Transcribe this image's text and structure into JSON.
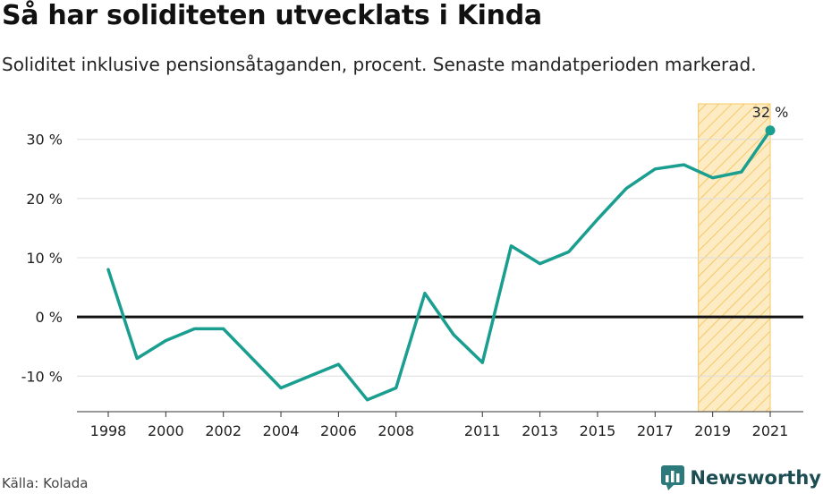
{
  "header": {
    "title": "Så har soliditeten utvecklats i Kinda",
    "subtitle": "Soliditet inklusive pensionsåtaganden, procent. Senaste mandatperioden markerad."
  },
  "footer": {
    "source": "Källa: Kolada",
    "brand": "Newsworthy",
    "brand_icon": "bar-chart-speech-icon"
  },
  "colors": {
    "line": "#1a9e8f",
    "highlight_fill": "#fde3a7",
    "highlight_stroke": "#f5c865",
    "zero_line": "#111111",
    "grid": "#dddddd",
    "brand": "#2c7a7b"
  },
  "chart_data": {
    "type": "line",
    "x": [
      1998,
      1999,
      2000,
      2001,
      2002,
      2003,
      2004,
      2005,
      2006,
      2007,
      2008,
      2009,
      2010,
      2011,
      2012,
      2013,
      2014,
      2015,
      2016,
      2017,
      2018,
      2019,
      2020,
      2021
    ],
    "values": [
      8,
      -7,
      -4,
      -2,
      -2,
      -7,
      -12,
      -10,
      -8,
      -14,
      -12,
      4,
      -3,
      -7.7,
      12,
      9,
      11,
      16.5,
      21.7,
      25,
      25.7,
      23.5,
      24.5,
      31.5
    ],
    "xticks": [
      "1998",
      "2000",
      "2002",
      "2004",
      "2006",
      "2008",
      "2011",
      "2013",
      "2015",
      "2017",
      "2019",
      "2021"
    ],
    "yticks": [
      {
        "value": -10,
        "label": "-10 %"
      },
      {
        "value": 0,
        "label": "0 %"
      },
      {
        "value": 10,
        "label": "10 %"
      },
      {
        "value": 20,
        "label": "20 %"
      },
      {
        "value": 30,
        "label": "30 %"
      }
    ],
    "ylim": [
      -16,
      36
    ],
    "highlight": {
      "from": 2018.5,
      "to": 2021
    },
    "last_point_label": "32 %",
    "grid": true
  }
}
